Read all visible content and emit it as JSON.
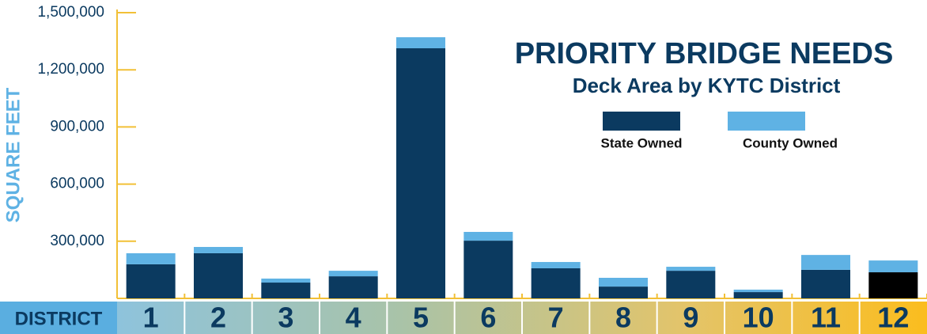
{
  "chart_data": {
    "type": "stacked_bar",
    "title": "PRIORITY BRIDGE NEEDS",
    "subtitle": "Deck Area by KYTC District",
    "x_label": "DISTRICT",
    "y_label": "SQUARE FEET",
    "categories": [
      "1",
      "2",
      "3",
      "4",
      "5",
      "6",
      "7",
      "8",
      "9",
      "10",
      "11",
      "12"
    ],
    "series": [
      {
        "name": "State Owned",
        "color": "#0b3a60",
        "colors": [
          "#0b3a60",
          "#0b3a60",
          "#0b3a60",
          "#0b3a60",
          "#0b3a60",
          "#0b3a60",
          "#0b3a60",
          "#0b3a60",
          "#0b3a60",
          "#0b3a60",
          "#0b3a60",
          "#000000"
        ],
        "values": [
          179000,
          237000,
          83000,
          116000,
          1313000,
          303000,
          158000,
          62000,
          145000,
          33000,
          150000,
          137000
        ]
      },
      {
        "name": "County Owned",
        "color": "#5fb2e4",
        "values": [
          58000,
          33000,
          21000,
          29000,
          58000,
          46000,
          33000,
          46000,
          21000,
          13000,
          78000,
          62000
        ]
      }
    ],
    "ylim": [
      0,
      1500000
    ],
    "yticks": [
      {
        "value": 300000,
        "label": "300,000"
      },
      {
        "value": 600000,
        "label": "600,000"
      },
      {
        "value": 900000,
        "label": "900,000"
      },
      {
        "value": 1200000,
        "label": "1,200,000"
      },
      {
        "value": 1500000,
        "label": "1,500,000"
      }
    ],
    "legend": "upper right"
  }
}
